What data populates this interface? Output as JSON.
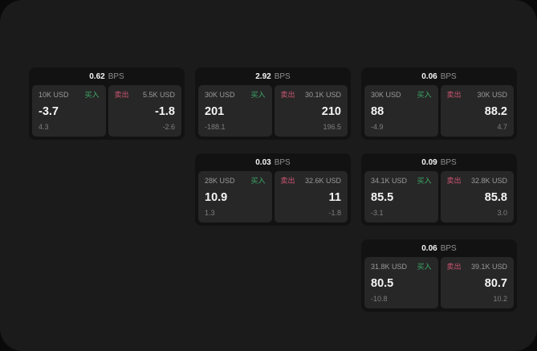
{
  "labels": {
    "buy_side": "买入",
    "sell_side": "卖出",
    "spread_unit": "BPS"
  },
  "colors": {
    "buy_accent": "#3cab68",
    "sell_accent": "#cb5571",
    "screen_background": "#1b1b1b",
    "card_background": "#121212",
    "panel_background": "#272727",
    "text_primary": "#f5f5f5",
    "text_muted": "#8f8f8f"
  },
  "cards": [
    {
      "spread": "0.62",
      "unit": "BPS",
      "buy": {
        "size": "10K USD",
        "side_label": "买入",
        "price": "-3.7",
        "sub_value": "4.3"
      },
      "sell": {
        "side_label": "卖出",
        "size": "5.5K USD",
        "price": "-1.8",
        "sub_value": "-2.6"
      }
    },
    {
      "spread": "2.92",
      "unit": "BPS",
      "buy": {
        "size": "30K USD",
        "side_label": "买入",
        "price": "201",
        "sub_value": "-188.1"
      },
      "sell": {
        "side_label": "卖出",
        "size": "30.1K USD",
        "price": "210",
        "sub_value": "196.5"
      }
    },
    {
      "spread": "0.06",
      "unit": "BPS",
      "buy": {
        "size": "30K USD",
        "side_label": "买入",
        "price": "88",
        "sub_value": "-4.9"
      },
      "sell": {
        "side_label": "卖出",
        "size": "30K USD",
        "price": "88.2",
        "sub_value": "4.7"
      }
    },
    {
      "spread": "0.03",
      "unit": "BPS",
      "buy": {
        "size": "28K USD",
        "side_label": "买入",
        "price": "10.9",
        "sub_value": "1.3"
      },
      "sell": {
        "side_label": "卖出",
        "size": "32.6K USD",
        "price": "11",
        "sub_value": "-1.8"
      }
    },
    {
      "spread": "0.09",
      "unit": "BPS",
      "buy": {
        "size": "34.1K USD",
        "side_label": "买入",
        "price": "85.5",
        "sub_value": "-3.1"
      },
      "sell": {
        "side_label": "卖出",
        "size": "32.8K USD",
        "price": "85.8",
        "sub_value": "3.0"
      }
    },
    {
      "spread": "0.06",
      "unit": "BPS",
      "buy": {
        "size": "31.8K USD",
        "side_label": "买入",
        "price": "80.5",
        "sub_value": "-10.8"
      },
      "sell": {
        "side_label": "卖出",
        "size": "39.1K USD",
        "price": "80.7",
        "sub_value": "10.2"
      }
    }
  ]
}
